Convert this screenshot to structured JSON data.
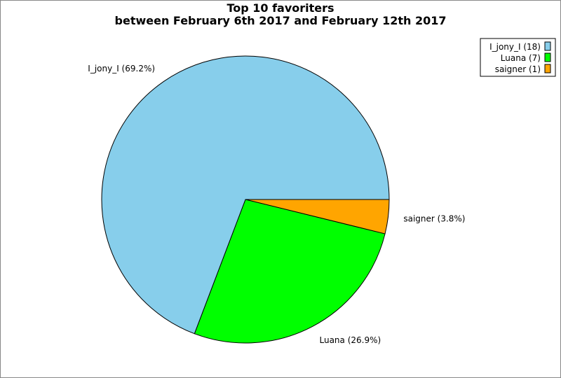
{
  "chart_data": {
    "type": "pie",
    "title": "Top 10 favoriters",
    "subtitle": "between February 6th 2017 and February 12th 2017",
    "legend_position": "top-right",
    "slices": [
      {
        "name": "I_jony_I",
        "value": 18,
        "percent": 69.2,
        "label": "I_jony_I (69.2%)",
        "legend": "I_jony_I (18)",
        "color": "#87ceeb"
      },
      {
        "name": "Luana",
        "value": 7,
        "percent": 26.9,
        "label": "Luana (26.9%)",
        "legend": "Luana (7)",
        "color": "#00ff00"
      },
      {
        "name": "saigner",
        "value": 1,
        "percent": 3.8,
        "label": "saigner (3.8%)",
        "legend": "saigner (1)",
        "color": "#ffa500"
      }
    ]
  }
}
